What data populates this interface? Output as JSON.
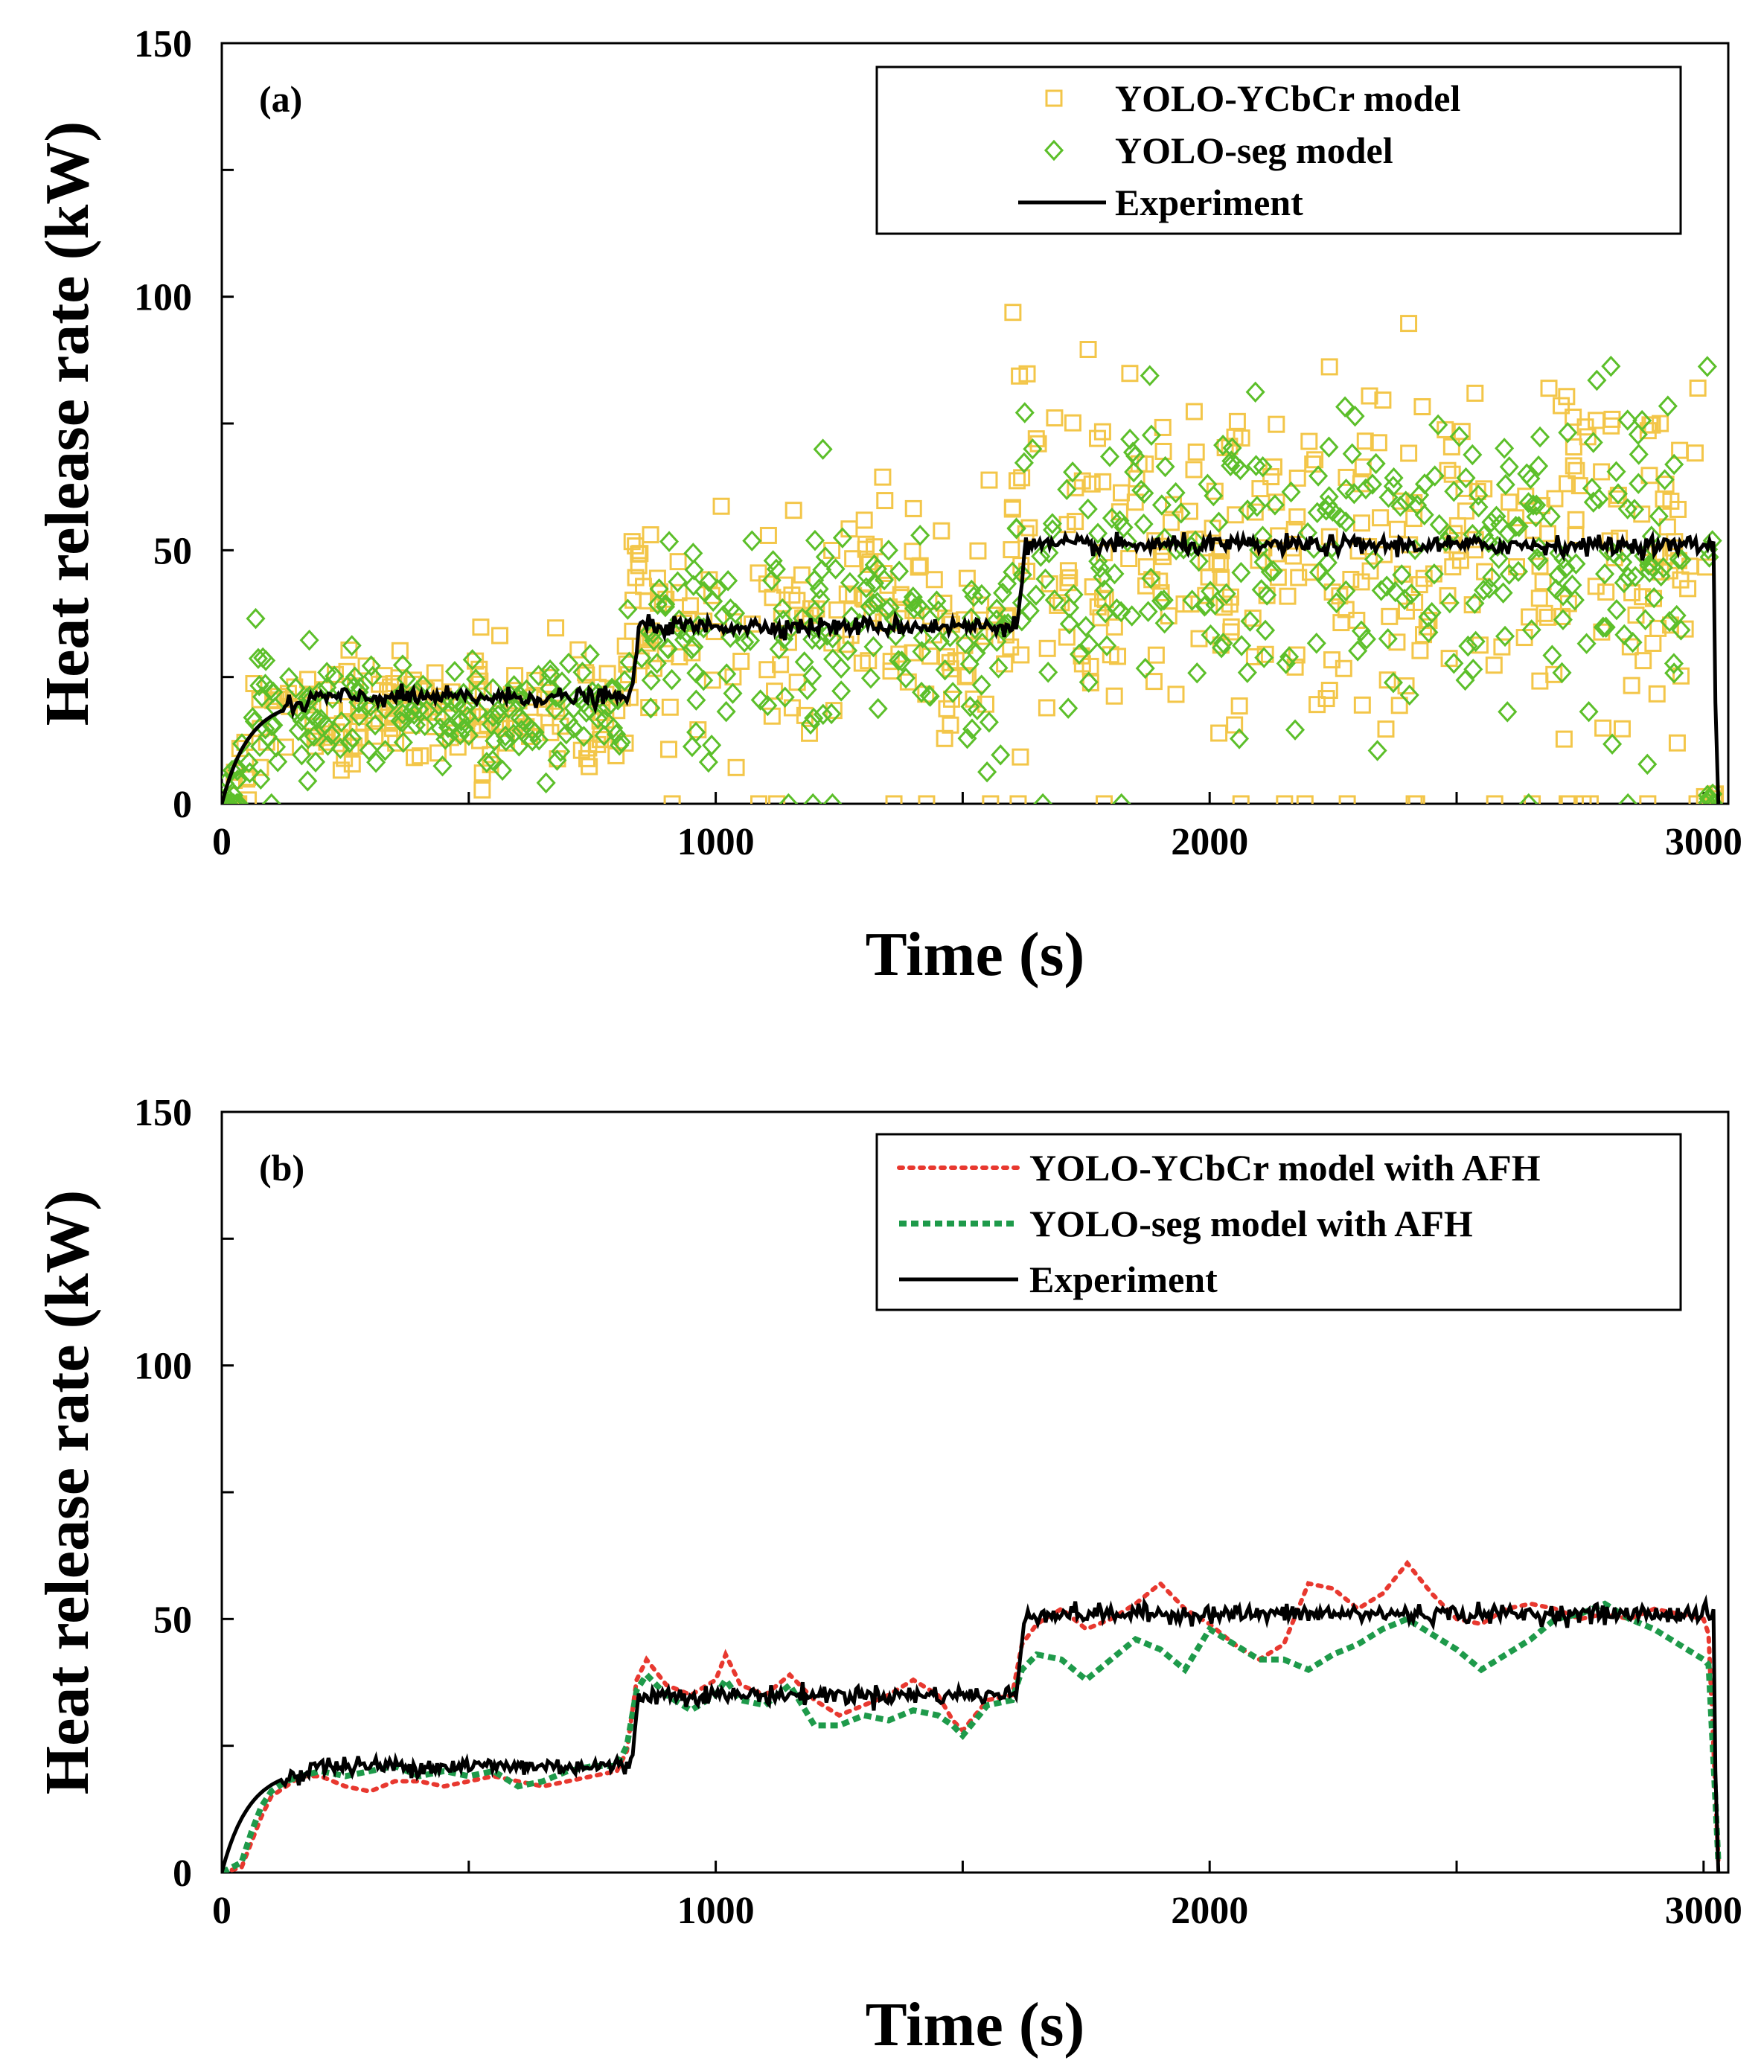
{
  "chart_data": [
    {
      "type": "scatter",
      "panel_label": "(a)",
      "xlabel": "Time (s)",
      "ylabel": "Heat release rate (kW)",
      "xlim": [
        0,
        3050
      ],
      "ylim": [
        0,
        150
      ],
      "x_ticks": [
        "0",
        "1000",
        "2000",
        "3000"
      ],
      "y_ticks": [
        "0",
        "50",
        "100",
        "150"
      ],
      "grid": false,
      "legend_position": "top-right",
      "colors": {
        "ycbcr": "#f3c649",
        "seg": "#5cbf2a",
        "experiment": "#000000"
      },
      "legend": [
        {
          "key": "ycbcr",
          "label": "YOLO-YCbCr model",
          "marker": "square"
        },
        {
          "key": "seg",
          "label": "YOLO-seg model",
          "marker": "diamond"
        },
        {
          "key": "experiment",
          "label": "Experiment",
          "marker": "line"
        }
      ],
      "experiment_steps": [
        {
          "t_start": 0,
          "t_end": 830,
          "level": 21
        },
        {
          "t_start": 830,
          "t_end": 1610,
          "level": 35
        },
        {
          "t_start": 1610,
          "t_end": 3020,
          "level": 51
        }
      ],
      "scatter_summary": [
        {
          "t_range": [
            0,
            820
          ],
          "mean": 18,
          "spread": [
            2,
            54
          ]
        },
        {
          "t_range": [
            820,
            1600
          ],
          "mean": 35,
          "spread": [
            0,
            81
          ]
        },
        {
          "t_range": [
            1600,
            3020
          ],
          "mean": 50,
          "spread": [
            0,
            108
          ]
        }
      ]
    },
    {
      "type": "line",
      "panel_label": "(b)",
      "xlabel": "Time (s)",
      "ylabel": "Heat release rate (kW)",
      "xlim": [
        0,
        3050
      ],
      "ylim": [
        0,
        150
      ],
      "x_ticks": [
        "0",
        "1000",
        "2000",
        "3000"
      ],
      "y_ticks": [
        "0",
        "50",
        "100",
        "150"
      ],
      "grid": false,
      "legend_position": "top-right",
      "series": [
        {
          "key": "ycbcr_afh",
          "name": "YOLO-YCbCr model with AFH",
          "color": "#e8382f",
          "style": "dotted",
          "x": [
            0,
            40,
            60,
            80,
            100,
            130,
            160,
            200,
            250,
            300,
            350,
            400,
            450,
            500,
            550,
            600,
            650,
            700,
            750,
            800,
            820,
            840,
            860,
            900,
            950,
            1000,
            1020,
            1050,
            1100,
            1150,
            1200,
            1250,
            1300,
            1350,
            1400,
            1450,
            1480,
            1500,
            1550,
            1600,
            1620,
            1650,
            1700,
            1750,
            1800,
            1850,
            1900,
            1950,
            2000,
            2050,
            2100,
            2150,
            2200,
            2250,
            2300,
            2350,
            2400,
            2450,
            2500,
            2550,
            2600,
            2650,
            2700,
            2750,
            2800,
            2850,
            2900,
            2950,
            3000,
            3010,
            3020,
            3030
          ],
          "values": [
            0,
            1,
            6,
            11,
            15,
            17,
            19,
            19,
            17,
            16,
            18,
            18,
            17,
            18,
            19,
            18,
            17,
            18,
            19,
            20,
            24,
            38,
            42,
            37,
            35,
            38,
            43,
            37,
            35,
            39,
            34,
            31,
            33,
            35,
            38,
            35,
            30,
            28,
            34,
            35,
            45,
            49,
            52,
            48,
            50,
            53,
            57,
            52,
            49,
            45,
            42,
            45,
            57,
            56,
            52,
            55,
            61,
            55,
            50,
            49,
            52,
            53,
            52,
            50,
            51,
            50,
            52,
            51,
            50,
            47,
            25,
            2
          ]
        },
        {
          "key": "seg_afh",
          "name": "YOLO-seg model with AFH",
          "color": "#1e9a4a",
          "style": "dashed",
          "x": [
            0,
            40,
            60,
            80,
            100,
            130,
            160,
            200,
            250,
            300,
            350,
            400,
            450,
            500,
            550,
            600,
            650,
            700,
            750,
            800,
            820,
            840,
            860,
            900,
            950,
            1000,
            1020,
            1050,
            1100,
            1150,
            1200,
            1250,
            1300,
            1350,
            1400,
            1450,
            1480,
            1500,
            1550,
            1600,
            1620,
            1650,
            1700,
            1750,
            1800,
            1850,
            1900,
            1950,
            2000,
            2050,
            2100,
            2150,
            2200,
            2250,
            2300,
            2350,
            2400,
            2450,
            2500,
            2550,
            2600,
            2650,
            2700,
            2750,
            2800,
            2850,
            2900,
            2950,
            3000,
            3010,
            3020,
            3030
          ],
          "values": [
            0,
            2,
            8,
            13,
            16,
            18,
            19,
            20,
            19,
            20,
            21,
            19,
            20,
            19,
            20,
            17,
            18,
            20,
            21,
            21,
            25,
            36,
            39,
            35,
            32,
            35,
            38,
            34,
            33,
            37,
            29,
            29,
            31,
            30,
            32,
            31,
            29,
            27,
            33,
            34,
            40,
            43,
            42,
            38,
            42,
            46,
            44,
            40,
            48,
            45,
            42,
            42,
            40,
            43,
            45,
            48,
            50,
            47,
            44,
            40,
            43,
            46,
            50,
            51,
            53,
            50,
            48,
            45,
            42,
            41,
            22,
            2
          ]
        },
        {
          "key": "experiment",
          "name": "Experiment",
          "color": "#000000",
          "style": "solid",
          "steps": [
            {
              "t_start": 0,
              "t_end": 830,
              "level": 21
            },
            {
              "t_start": 830,
              "t_end": 1610,
              "level": 35
            },
            {
              "t_start": 1610,
              "t_end": 3020,
              "level": 51
            }
          ]
        }
      ]
    }
  ]
}
